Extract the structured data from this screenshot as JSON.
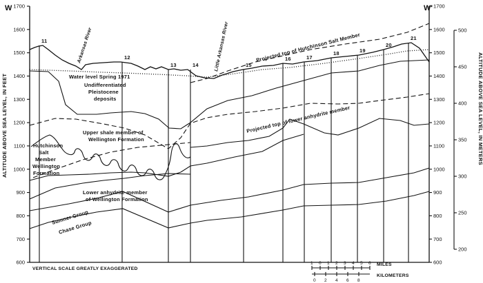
{
  "section": {
    "west_label": "W",
    "east_label": "W'",
    "left_axis_title": "ALTITUDE ABOVE SEA LEVEL, IN FEET",
    "right_axis_title": "ALTITUDE ABOVE SEA LEVEL, IN METERS",
    "feet_ticks": [
      "1700",
      "1600",
      "1500",
      "1400",
      "1300",
      "1200",
      "1100",
      "1000",
      "900",
      "800",
      "700",
      "600"
    ],
    "feet_ticks_right": [
      "1700",
      "1600",
      "1500",
      "1400",
      "1300",
      "1200",
      "1100",
      "1000",
      "900",
      "800",
      "700",
      "600"
    ],
    "meter_ticks": [
      "500",
      "450",
      "400",
      "350",
      "300",
      "250",
      "200"
    ],
    "well_numbers": [
      "11",
      "12",
      "13",
      "14",
      "15",
      "16",
      "17",
      "18",
      "19",
      "20",
      "21"
    ],
    "rivers": {
      "arkansas": "Arkansas River",
      "little_arkansas": "Little Arkansas River"
    },
    "labels": {
      "water_level": "Water level Spring 1971",
      "pleistocene": [
        "Undifferentiated",
        "Pleistocene",
        "deposits"
      ],
      "hutchinson_salt": "Projected top of Hutchinson Salt Member",
      "lower_anhydrite_top": "Projected top of lower anhydrite member",
      "upper_shale": [
        "Upper shale member of",
        "Wellington Formation"
      ],
      "hutchinson_left": [
        "Hutchinson",
        "Salt",
        "Member",
        "Wellington",
        "Formation"
      ],
      "lower_anhydrite": [
        "Lower anhydrite member",
        "of Wellington Formation"
      ],
      "sumner": "Sumner Group",
      "chase": "Chase Group",
      "vertical_scale": "VERTICAL SCALE GREATLY EXAGGERATED",
      "miles_unit": "MILES",
      "km_unit": "KILOMETERS",
      "miles_ticks": [
        "1",
        "0",
        "1",
        "2",
        "3",
        "4",
        "5",
        "6"
      ],
      "km_ticks": [
        "0",
        "2",
        "4",
        "6",
        "8"
      ]
    }
  }
}
